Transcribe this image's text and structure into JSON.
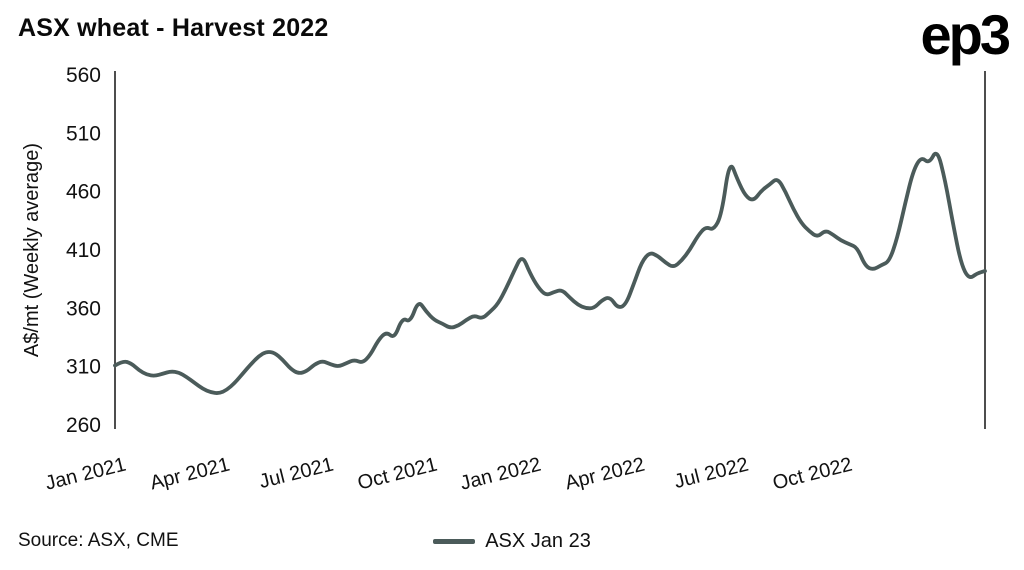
{
  "header": {
    "title": "ASX wheat - Harvest 2022",
    "logo": "ep3"
  },
  "footer": {
    "source": "Source: ASX, CME",
    "legend": {
      "label": "ASX Jan 23"
    }
  },
  "colors": {
    "line": "#4b5b5a",
    "text": "#111111",
    "axis": "#222222"
  },
  "chart_data": {
    "type": "line",
    "title": "ASX wheat - Harvest 2022",
    "ylabel": "A$/mt (Weekly average)",
    "xlabel": "",
    "ylim": [
      260,
      560
    ],
    "yticks": [
      260,
      310,
      360,
      410,
      460,
      510,
      560
    ],
    "grid": false,
    "legend_position": "bottom-center",
    "x_unit": "week",
    "x_tick_labels": [
      "Jan 2021",
      "Apr 2021",
      "Jul 2021",
      "Oct 2021",
      "Jan 2022",
      "Apr 2022",
      "Jul 2022",
      "Oct 2022"
    ],
    "x_tick_indices": [
      0,
      13,
      26,
      39,
      52,
      65,
      78,
      91
    ],
    "series": [
      {
        "name": "ASX Jan 23",
        "color": "#4b5b5a",
        "values": [
          311,
          315,
          313,
          307,
          303,
          302,
          304,
          306,
          305,
          301,
          296,
          291,
          288,
          287,
          290,
          296,
          304,
          312,
          319,
          323,
          322,
          316,
          308,
          304,
          306,
          312,
          315,
          312,
          310,
          313,
          316,
          313,
          320,
          333,
          340,
          334,
          352,
          348,
          367,
          357,
          350,
          347,
          343,
          345,
          350,
          354,
          351,
          357,
          364,
          377,
          392,
          406,
          390,
          378,
          371,
          374,
          376,
          369,
          363,
          360,
          360,
          367,
          370,
          360,
          363,
          381,
          400,
          408,
          405,
          399,
          395,
          401,
          410,
          422,
          430,
          427,
          440,
          488,
          470,
          456,
          452,
          461,
          466,
          472,
          460,
          445,
          433,
          426,
          421,
          427,
          423,
          418,
          415,
          412,
          396,
          393,
          397,
          400,
          420,
          450,
          478,
          490,
          484,
          497,
          470,
          432,
          398,
          385,
          390,
          392
        ]
      }
    ]
  }
}
